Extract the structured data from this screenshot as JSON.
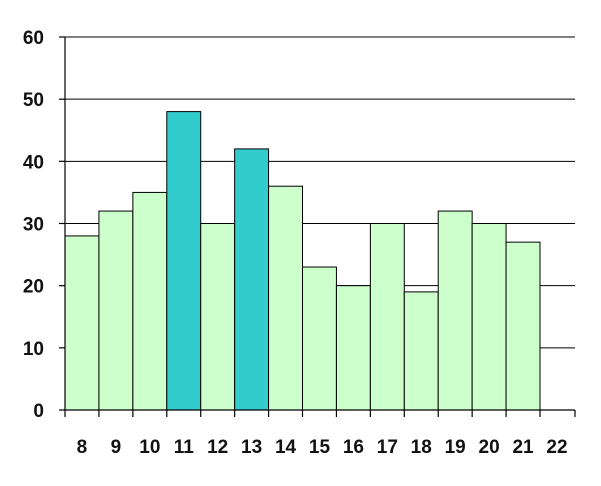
{
  "chart_data": {
    "type": "bar",
    "title": "",
    "xlabel": "",
    "ylabel": "",
    "ylim": [
      0,
      60
    ],
    "yticks": [
      "0",
      "10",
      "20",
      "30",
      "40",
      "50",
      "60"
    ],
    "xticks": [
      "8",
      "9",
      "10",
      "11",
      "12",
      "13",
      "14",
      "15",
      "16",
      "17",
      "18",
      "19",
      "20",
      "21",
      "22"
    ],
    "grid": "horizontal",
    "colors": {
      "bar_default": "#ccffcc",
      "bar_highlight": "#33cccc",
      "background": "#ffffff",
      "grid": "#000000"
    },
    "bars": [
      {
        "x_start": "8",
        "value": 28,
        "highlight": false
      },
      {
        "x_start": "9",
        "value": 32,
        "highlight": false
      },
      {
        "x_start": "10",
        "value": 35,
        "highlight": false
      },
      {
        "x_start": "11",
        "value": 48,
        "highlight": true
      },
      {
        "x_start": "12",
        "value": 30,
        "highlight": false
      },
      {
        "x_start": "13",
        "value": 42,
        "highlight": true
      },
      {
        "x_start": "14",
        "value": 36,
        "highlight": false
      },
      {
        "x_start": "15",
        "value": 23,
        "highlight": false
      },
      {
        "x_start": "16",
        "value": 20,
        "highlight": false
      },
      {
        "x_start": "17",
        "value": 30,
        "highlight": false
      },
      {
        "x_start": "18",
        "value": 19,
        "highlight": false
      },
      {
        "x_start": "19",
        "value": 32,
        "highlight": false
      },
      {
        "x_start": "20",
        "value": 30,
        "highlight": false
      },
      {
        "x_start": "21",
        "value": 27,
        "highlight": false
      }
    ]
  }
}
